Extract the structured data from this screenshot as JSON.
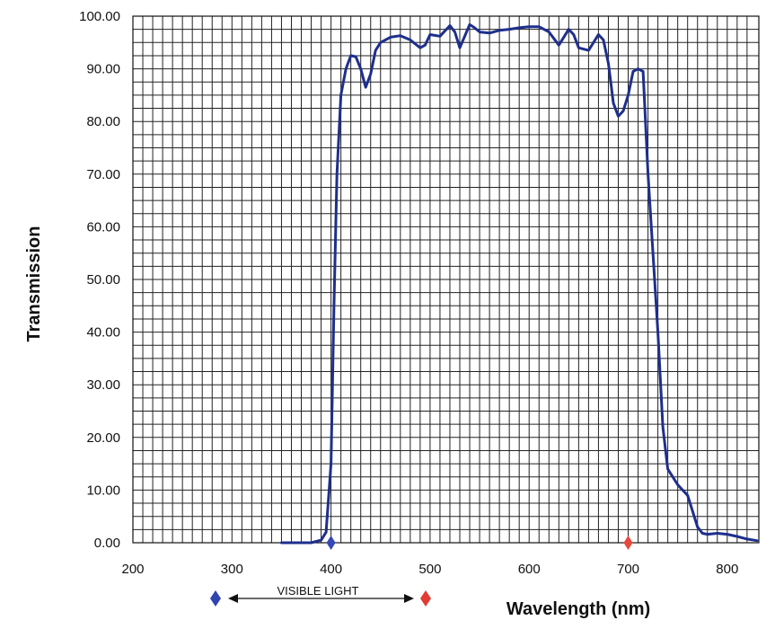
{
  "chart_data": {
    "type": "line",
    "xlabel": "Wavelength (nm)",
    "ylabel": "Transmission",
    "xlim": [
      200,
      830
    ],
    "ylim": [
      0,
      100
    ],
    "x_ticks": [
      200,
      300,
      400,
      500,
      600,
      700,
      800
    ],
    "y_ticks": [
      "0.00",
      "10.00",
      "20.00",
      "30.00",
      "40.00",
      "50.00",
      "60.00",
      "70.00",
      "80.00",
      "90.00",
      "100.00"
    ],
    "grid": true,
    "series": [
      {
        "color": "#1e2f8c",
        "x": [
          350,
          380,
          390,
          395,
          400,
          403,
          406,
          410,
          415,
          420,
          425,
          430,
          435,
          440,
          445,
          450,
          460,
          470,
          480,
          490,
          495,
          500,
          510,
          520,
          525,
          530,
          540,
          545,
          550,
          560,
          570,
          580,
          590,
          600,
          610,
          620,
          630,
          635,
          640,
          645,
          650,
          660,
          670,
          675,
          680,
          685,
          690,
          695,
          700,
          705,
          710,
          715,
          720,
          725,
          730,
          735,
          740,
          745,
          750,
          760,
          765,
          770,
          775,
          780,
          790,
          800,
          810,
          820,
          830
        ],
        "y": [
          0,
          0,
          0.5,
          2,
          15,
          45,
          70,
          85,
          90,
          92.5,
          92.3,
          90,
          86.5,
          89,
          93.5,
          95,
          96,
          96.3,
          95.5,
          94,
          94.5,
          96.5,
          96.2,
          98.2,
          97,
          94,
          98.4,
          97.8,
          97,
          96.8,
          97.3,
          97.5,
          97.8,
          98,
          98,
          97,
          94.5,
          96,
          97.5,
          96.5,
          94,
          93.5,
          96.5,
          95.5,
          91,
          83.5,
          81,
          82,
          85,
          89.5,
          90,
          89.5,
          70,
          55,
          40,
          22,
          14,
          12.5,
          11,
          9,
          6,
          3,
          1.8,
          1.6,
          1.8,
          1.6,
          1.2,
          0.7,
          0.4
        ]
      }
    ],
    "markers": [
      {
        "x": 400,
        "y": 0,
        "color": "#3548b5"
      },
      {
        "x": 700,
        "y": 0,
        "color": "#e8493f"
      }
    ],
    "annotation": {
      "label": "VISIBLE LIGHT",
      "left_color": "#2f44b0",
      "right_color": "#e23b33"
    }
  }
}
